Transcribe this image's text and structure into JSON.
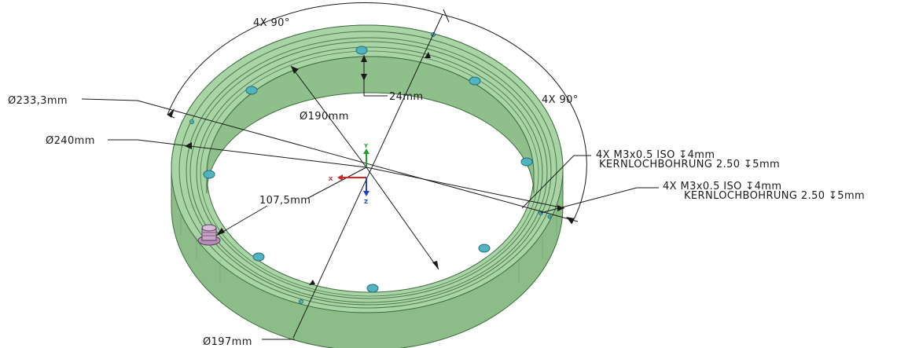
{
  "dimensions": {
    "angle_top": "4X  90°",
    "angle_right": "4X  90°",
    "diameter_233": "Ø233,3mm",
    "diameter_240": "Ø240mm",
    "diameter_190": "Ø190mm",
    "depth_24": "24mm",
    "radius_107": "107,5mm",
    "diameter_197": "Ø197mm"
  },
  "callouts": {
    "thread_1_line1": "4X  M3x0.5  ISO  ↧4mm",
    "thread_1_line2": "KERNLOCHBOHRUNG  2.50  ↧5mm",
    "thread_2_line1": "4X  M3x0.5  ISO  ↧4mm",
    "thread_2_line2": "KERNLOCHBOHRUNG  2.50  ↧5mm"
  },
  "triad": {
    "x": "X",
    "y": "Y",
    "z": "Z"
  },
  "colors": {
    "ring_face": "#a8d4a6",
    "ring_side": "#8cbc88",
    "ring_edge": "#3f6b3f",
    "hole": "#4fb4c0",
    "boss": "#b58eb5",
    "axis_x": "#e02020",
    "axis_y": "#20a020",
    "axis_z": "#2040d0"
  }
}
